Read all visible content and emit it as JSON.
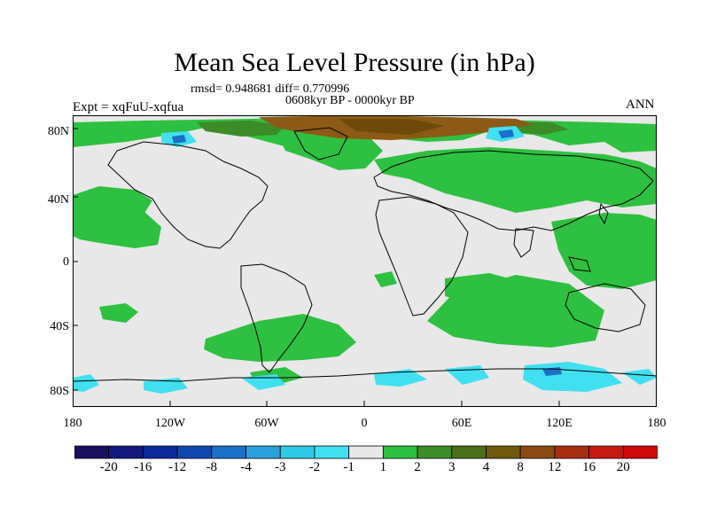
{
  "title": "Mean Sea Level Pressure (in hPa)",
  "stats": "rmsd= 0.948681 diff= 0.770996",
  "period": "0608kyr BP - 0000kyr BP",
  "experiment": "Expt = xqFuU-xqfua",
  "season": "ANN",
  "lat_labels": [
    "80N",
    "40N",
    "0",
    "40S",
    "80S"
  ],
  "lon_labels": [
    "180",
    "120W",
    "60W",
    "0",
    "60E",
    "120E",
    "180"
  ],
  "colorbar": {
    "labels": [
      "-20",
      "-16",
      "-12",
      "-8",
      "-4",
      "-3",
      "-2",
      "-1",
      "1",
      "2",
      "3",
      "4",
      "8",
      "12",
      "16",
      "20"
    ],
    "colors": [
      "#1a1060",
      "#141a80",
      "#0d2a9a",
      "#1048b0",
      "#1a70c8",
      "#2aa0dc",
      "#30c8e8",
      "#40e0f0",
      "#e8e8e8",
      "#2ec040",
      "#3c8c28",
      "#4a7018",
      "#6e5a0a",
      "#8c4a10",
      "#a82e10",
      "#c81a10",
      "#d00808"
    ]
  },
  "colors": {
    "background": "#e8e8e8",
    "positive_small": "#2ec040",
    "positive_mid": "#3c8c28",
    "positive_high": "#8c5a14",
    "negative_small": "#40e0f0",
    "negative_mid": "#1a70c8"
  }
}
